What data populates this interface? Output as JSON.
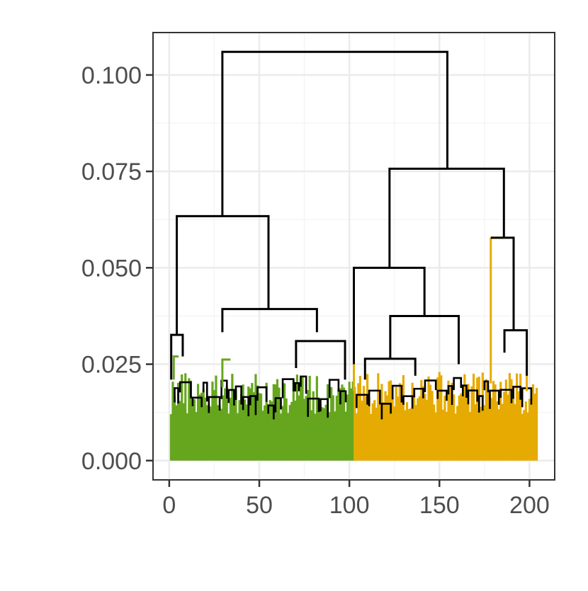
{
  "chart_data": {
    "type": "dendrogram",
    "title": "",
    "xlabel": "",
    "ylabel": "",
    "xlim": [
      -9,
      214
    ],
    "ylim": [
      -0.005,
      0.111
    ],
    "x_ticks": [
      0,
      50,
      100,
      150,
      200
    ],
    "x_tick_labels": [
      "0",
      "50",
      "100",
      "150",
      "200"
    ],
    "y_ticks": [
      0.0,
      0.025,
      0.05,
      0.075,
      0.1
    ],
    "y_tick_labels": [
      "0.000",
      "0.025",
      "0.050",
      "0.075",
      "0.100"
    ],
    "grid": true,
    "n_leaves": 204,
    "clusters": [
      {
        "name": "",
        "color": "#66a61e",
        "leaf_range": [
          1,
          102
        ]
      },
      {
        "name": "",
        "color": "#e6ab02",
        "leaf_range": [
          103,
          204
        ]
      }
    ],
    "merges": [
      {
        "left": 29.5,
        "right": 154.4,
        "height": 0.106
      },
      {
        "left": 4.2,
        "right": 55.1,
        "height": 0.0634
      },
      {
        "left": 122.3,
        "right": 185.8,
        "height": 0.0757
      },
      {
        "left": 102.5,
        "right": 141.7,
        "height": 0.05
      },
      {
        "left": 178.5,
        "right": 191.2,
        "height": 0.0578
      },
      {
        "left": 29.5,
        "right": 82.0,
        "height": 0.0393
      },
      {
        "left": 122.7,
        "right": 160.7,
        "height": 0.0375
      },
      {
        "left": 70.4,
        "right": 97.6,
        "height": 0.031
      },
      {
        "left": 108.7,
        "right": 136.6,
        "height": 0.0264
      },
      {
        "left": 186.1,
        "right": 198.5,
        "height": 0.0338
      },
      {
        "left": 1.1,
        "right": 7.5,
        "height": 0.0326
      }
    ]
  },
  "colors": {
    "cluster_1": "#66a61e",
    "cluster_2": "#e6ab02",
    "branch": "#000000",
    "grid_major": "#ebebeb",
    "grid_minor": "#f5f5f5",
    "panel_border": "#333333",
    "tick_text": "#4d4d4d"
  }
}
